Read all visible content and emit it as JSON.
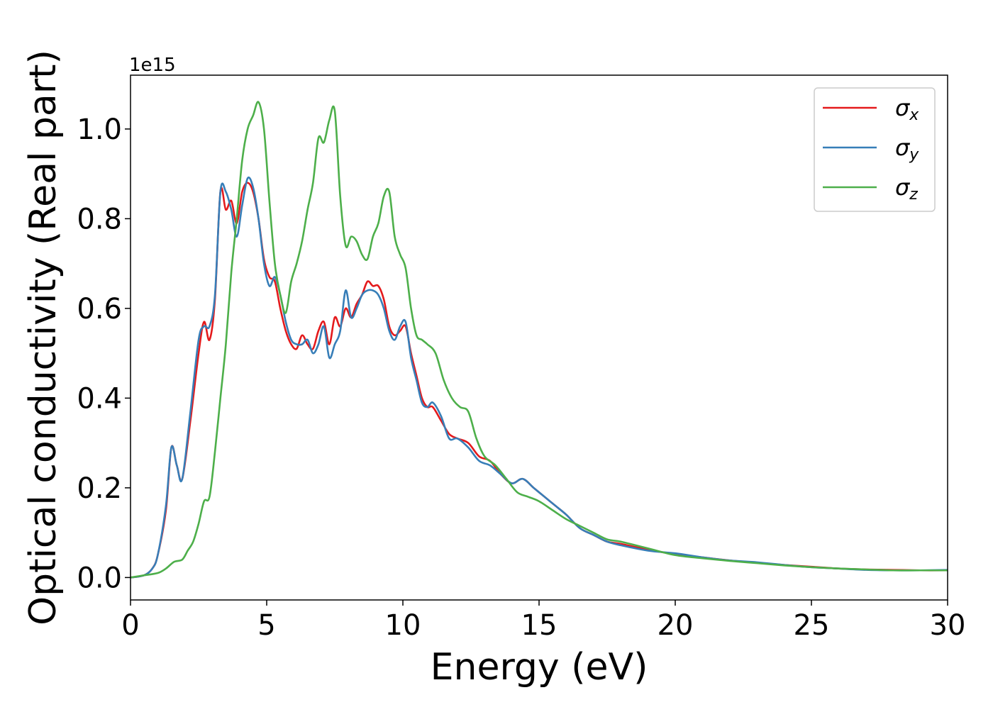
{
  "chart_data": {
    "type": "line",
    "xlabel": "Energy (eV)",
    "ylabel": "Optical conductivity (Real part)",
    "y_offset_label": "1e15",
    "xlim": [
      0,
      30
    ],
    "ylim": [
      -0.05,
      1.12
    ],
    "x_ticks": [
      0,
      5,
      10,
      15,
      20,
      25,
      30
    ],
    "x_tick_labels": [
      "0",
      "5",
      "10",
      "15",
      "20",
      "25",
      "30"
    ],
    "y_ticks": [
      0.0,
      0.2,
      0.4,
      0.6,
      0.8,
      1.0
    ],
    "y_tick_labels": [
      "0.0",
      "0.2",
      "0.4",
      "0.6",
      "0.8",
      "1.0"
    ],
    "grid": false,
    "legend_position": "top-right",
    "series": [
      {
        "name": "σx",
        "symbol": "σ",
        "subscript": "x",
        "color": "#e41a1c",
        "x": [
          0,
          0.5,
          0.8,
          1.0,
          1.3,
          1.5,
          1.7,
          1.9,
          2.2,
          2.5,
          2.7,
          2.9,
          3.1,
          3.3,
          3.5,
          3.7,
          3.9,
          4.1,
          4.3,
          4.5,
          4.7,
          4.9,
          5.1,
          5.3,
          5.5,
          5.7,
          5.9,
          6.1,
          6.3,
          6.5,
          6.7,
          6.9,
          7.1,
          7.3,
          7.5,
          7.7,
          7.9,
          8.1,
          8.3,
          8.5,
          8.7,
          8.9,
          9.1,
          9.3,
          9.5,
          9.7,
          9.9,
          10.1,
          10.3,
          10.5,
          10.7,
          10.9,
          11.1,
          11.4,
          11.7,
          12.0,
          12.4,
          12.8,
          13.2,
          13.6,
          14.0,
          14.4,
          14.8,
          15.2,
          15.6,
          16.0,
          16.5,
          17.0,
          17.5,
          18.0,
          19.0,
          20.0,
          21.0,
          22.0,
          23.0,
          24.0,
          25.0,
          26.0,
          27.0,
          28.0,
          29.0,
          30.0
        ],
        "values": [
          0.0,
          0.005,
          0.02,
          0.05,
          0.15,
          0.29,
          0.25,
          0.22,
          0.35,
          0.5,
          0.57,
          0.53,
          0.62,
          0.86,
          0.82,
          0.84,
          0.79,
          0.86,
          0.88,
          0.86,
          0.8,
          0.71,
          0.67,
          0.66,
          0.6,
          0.55,
          0.52,
          0.51,
          0.54,
          0.52,
          0.51,
          0.55,
          0.57,
          0.52,
          0.58,
          0.56,
          0.6,
          0.58,
          0.61,
          0.63,
          0.66,
          0.65,
          0.65,
          0.62,
          0.56,
          0.54,
          0.55,
          0.56,
          0.5,
          0.45,
          0.4,
          0.38,
          0.38,
          0.35,
          0.32,
          0.31,
          0.3,
          0.27,
          0.26,
          0.23,
          0.21,
          0.22,
          0.2,
          0.18,
          0.16,
          0.14,
          0.11,
          0.095,
          0.08,
          0.075,
          0.062,
          0.052,
          0.045,
          0.038,
          0.033,
          0.028,
          0.024,
          0.02,
          0.018,
          0.017,
          0.016,
          0.016
        ]
      },
      {
        "name": "σy",
        "symbol": "σ",
        "subscript": "y",
        "color": "#377eb8",
        "x": [
          0,
          0.5,
          0.8,
          1.0,
          1.3,
          1.5,
          1.7,
          1.9,
          2.2,
          2.5,
          2.7,
          2.9,
          3.1,
          3.3,
          3.5,
          3.7,
          3.9,
          4.1,
          4.3,
          4.5,
          4.7,
          4.9,
          5.1,
          5.3,
          5.5,
          5.7,
          5.9,
          6.1,
          6.3,
          6.5,
          6.7,
          6.9,
          7.1,
          7.3,
          7.5,
          7.7,
          7.9,
          8.1,
          8.3,
          8.5,
          8.7,
          8.9,
          9.1,
          9.3,
          9.5,
          9.7,
          9.9,
          10.1,
          10.3,
          10.5,
          10.7,
          10.9,
          11.1,
          11.4,
          11.7,
          12.0,
          12.4,
          12.8,
          13.2,
          13.6,
          14.0,
          14.4,
          14.8,
          15.2,
          15.6,
          16.0,
          16.5,
          17.0,
          17.5,
          18.0,
          19.0,
          20.0,
          21.0,
          22.0,
          23.0,
          24.0,
          25.0,
          26.0,
          27.0,
          28.0,
          29.0,
          30.0
        ],
        "values": [
          0.0,
          0.005,
          0.02,
          0.05,
          0.16,
          0.29,
          0.25,
          0.22,
          0.37,
          0.53,
          0.56,
          0.56,
          0.63,
          0.86,
          0.86,
          0.82,
          0.76,
          0.83,
          0.89,
          0.87,
          0.8,
          0.7,
          0.65,
          0.67,
          0.63,
          0.57,
          0.53,
          0.52,
          0.52,
          0.53,
          0.5,
          0.52,
          0.56,
          0.49,
          0.52,
          0.55,
          0.64,
          0.58,
          0.6,
          0.63,
          0.64,
          0.64,
          0.63,
          0.6,
          0.55,
          0.53,
          0.56,
          0.57,
          0.49,
          0.44,
          0.39,
          0.38,
          0.39,
          0.36,
          0.31,
          0.31,
          0.29,
          0.26,
          0.25,
          0.23,
          0.21,
          0.22,
          0.2,
          0.18,
          0.16,
          0.14,
          0.11,
          0.095,
          0.08,
          0.072,
          0.06,
          0.054,
          0.045,
          0.038,
          0.034,
          0.028,
          0.023,
          0.02,
          0.017,
          0.016,
          0.016,
          0.017
        ]
      },
      {
        "name": "σz",
        "symbol": "σ",
        "subscript": "z",
        "color": "#4daf4a",
        "x": [
          0,
          0.5,
          1.0,
          1.3,
          1.6,
          1.9,
          2.1,
          2.3,
          2.5,
          2.7,
          2.9,
          3.1,
          3.3,
          3.5,
          3.7,
          3.9,
          4.1,
          4.3,
          4.5,
          4.7,
          4.9,
          5.1,
          5.3,
          5.5,
          5.7,
          5.9,
          6.1,
          6.3,
          6.5,
          6.7,
          6.9,
          7.1,
          7.3,
          7.5,
          7.7,
          7.9,
          8.1,
          8.3,
          8.5,
          8.7,
          8.9,
          9.1,
          9.3,
          9.5,
          9.7,
          9.9,
          10.1,
          10.3,
          10.5,
          10.7,
          10.9,
          11.2,
          11.5,
          11.8,
          12.1,
          12.4,
          12.7,
          13.0,
          13.4,
          13.8,
          14.2,
          14.6,
          15.0,
          15.5,
          16.0,
          16.5,
          17.0,
          17.5,
          18.0,
          19.0,
          20.0,
          21.0,
          22.0,
          23.0,
          24.0,
          25.0,
          26.0,
          27.0,
          28.0,
          29.0,
          30.0
        ],
        "values": [
          0.0,
          0.005,
          0.01,
          0.02,
          0.035,
          0.04,
          0.06,
          0.08,
          0.12,
          0.17,
          0.18,
          0.28,
          0.4,
          0.52,
          0.68,
          0.8,
          0.93,
          1.0,
          1.03,
          1.06,
          1.0,
          0.84,
          0.7,
          0.63,
          0.59,
          0.66,
          0.7,
          0.75,
          0.82,
          0.88,
          0.98,
          0.97,
          1.02,
          1.04,
          0.85,
          0.74,
          0.76,
          0.75,
          0.72,
          0.71,
          0.76,
          0.79,
          0.85,
          0.86,
          0.76,
          0.72,
          0.69,
          0.6,
          0.54,
          0.53,
          0.52,
          0.5,
          0.44,
          0.4,
          0.38,
          0.37,
          0.31,
          0.27,
          0.25,
          0.22,
          0.19,
          0.18,
          0.17,
          0.15,
          0.13,
          0.115,
          0.1,
          0.085,
          0.08,
          0.065,
          0.05,
          0.043,
          0.037,
          0.032,
          0.027,
          0.023,
          0.02,
          0.018,
          0.016,
          0.016,
          0.016
        ]
      }
    ]
  }
}
